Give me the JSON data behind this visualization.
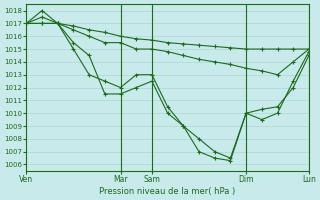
{
  "background_color": "#c8eaea",
  "grid_color": "#b0d4d4",
  "line_color": "#1a6b1a",
  "marker_color": "#1a6b1a",
  "xlabel": "Pression niveau de la mer( hPa )",
  "ylim": [
    1005.5,
    1018.5
  ],
  "yticks": [
    1006,
    1007,
    1008,
    1009,
    1010,
    1011,
    1012,
    1013,
    1014,
    1015,
    1016,
    1017,
    1018
  ],
  "xtick_labels": [
    "Ven",
    "Mar",
    "Sam",
    "Dim",
    "Lun"
  ],
  "xtick_positions": [
    0,
    24,
    32,
    56,
    72
  ],
  "vline_positions": [
    24,
    32,
    56,
    72
  ],
  "series": [
    {
      "x": [
        0,
        4,
        8,
        12,
        16,
        20,
        24,
        28,
        32,
        36,
        40,
        44,
        48,
        52,
        56,
        60,
        64,
        68,
        72
      ],
      "y": [
        1017,
        1018,
        1017,
        1015,
        1013,
        1012.5,
        1012,
        1013,
        1013,
        1010.5,
        1009,
        1007,
        1006.5,
        1006.3,
        1010,
        1009.5,
        1010,
        1012.5,
        1014.8
      ]
    },
    {
      "x": [
        0,
        4,
        8,
        12,
        16,
        20,
        24,
        28,
        32,
        36,
        40,
        44,
        48,
        52,
        56,
        60,
        64,
        68,
        72
      ],
      "y": [
        1017,
        1017,
        1017,
        1015.5,
        1014.5,
        1011.5,
        1011.5,
        1012,
        1012.5,
        1010,
        1009,
        1008,
        1007,
        1006.5,
        1010,
        1010.3,
        1010.5,
        1012,
        1014.5
      ]
    },
    {
      "x": [
        0,
        4,
        8,
        12,
        16,
        20,
        24,
        28,
        32,
        36,
        40,
        44,
        48,
        52,
        56,
        60,
        64,
        68,
        72
      ],
      "y": [
        1017,
        1017,
        1017,
        1016.5,
        1016,
        1015.5,
        1015.5,
        1015,
        1015,
        1014.8,
        1014.5,
        1014.2,
        1014,
        1013.8,
        1013.5,
        1013.3,
        1013,
        1014,
        1015
      ]
    },
    {
      "x": [
        0,
        4,
        8,
        12,
        16,
        20,
        24,
        28,
        32,
        36,
        40,
        44,
        48,
        52,
        56,
        60,
        64,
        68,
        72
      ],
      "y": [
        1017,
        1017.5,
        1017,
        1016.8,
        1016.5,
        1016.3,
        1016,
        1015.8,
        1015.7,
        1015.5,
        1015.4,
        1015.3,
        1015.2,
        1015.1,
        1015,
        1015,
        1015,
        1015,
        1015
      ]
    }
  ]
}
